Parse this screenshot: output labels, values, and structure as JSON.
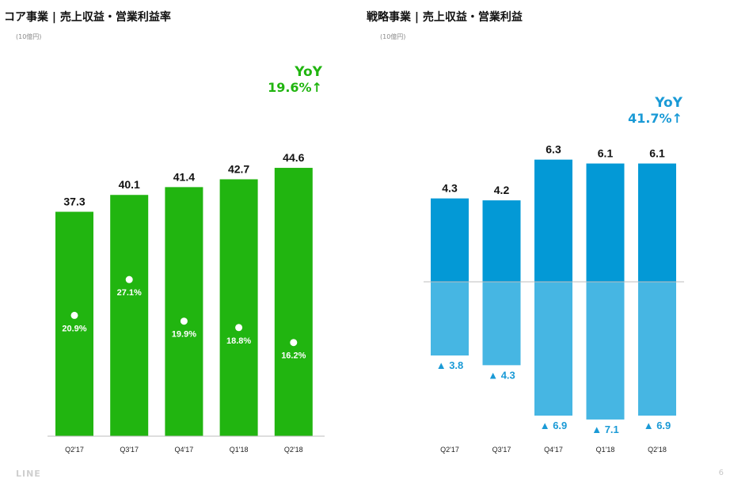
{
  "footer": {
    "logo": "LINE",
    "page_number": "6"
  },
  "colors": {
    "core_bar": "#21b510",
    "core_yoy": "#21b510",
    "strategic_positive": "#0399d6",
    "strategic_negative": "#46b6e3",
    "strategic_label": "#1a9ad6",
    "axis_line": "#bdbdbd"
  },
  "chart_data": [
    {
      "type": "bar",
      "title": "コア事業 | 売上収益・営業利益率",
      "unit": "(10億円)",
      "categories": [
        "Q2'17",
        "Q3'17",
        "Q4'17",
        "Q1'18",
        "Q2'18"
      ],
      "series": [
        {
          "name": "売上収益",
          "values": [
            37.3,
            40.1,
            41.4,
            42.7,
            44.6
          ],
          "labels": [
            "37.3",
            "40.1",
            "41.4",
            "42.7",
            "44.6"
          ]
        },
        {
          "name": "営業利益率",
          "values": [
            20.9,
            27.1,
            19.9,
            18.8,
            16.2
          ],
          "labels": [
            "20.9%",
            "27.1%",
            "19.9%",
            "18.8%",
            "16.2%"
          ]
        }
      ],
      "yoy": {
        "label": "YoY",
        "value": "19.6%↑"
      },
      "ylim": [
        0,
        50
      ],
      "grid": false
    },
    {
      "type": "bar",
      "title": "戦略事業 | 売上収益・営業利益",
      "unit": "(10億円)",
      "categories": [
        "Q2'17",
        "Q3'17",
        "Q4'17",
        "Q1'18",
        "Q2'18"
      ],
      "series": [
        {
          "name": "売上収益",
          "values": [
            4.3,
            4.2,
            6.3,
            6.1,
            6.1
          ],
          "labels": [
            "4.3",
            "4.2",
            "6.3",
            "6.1",
            "6.1"
          ]
        },
        {
          "name": "営業利益",
          "values": [
            -3.8,
            -4.3,
            -6.9,
            -7.1,
            -6.9
          ],
          "labels": [
            "▲ 3.8",
            "▲ 4.3",
            "▲ 6.9",
            "▲ 7.1",
            "▲ 6.9"
          ]
        }
      ],
      "yoy": {
        "label": "YoY",
        "value": "41.7%↑"
      },
      "ylim": [
        -7.5,
        7.5
      ],
      "grid": false
    }
  ]
}
